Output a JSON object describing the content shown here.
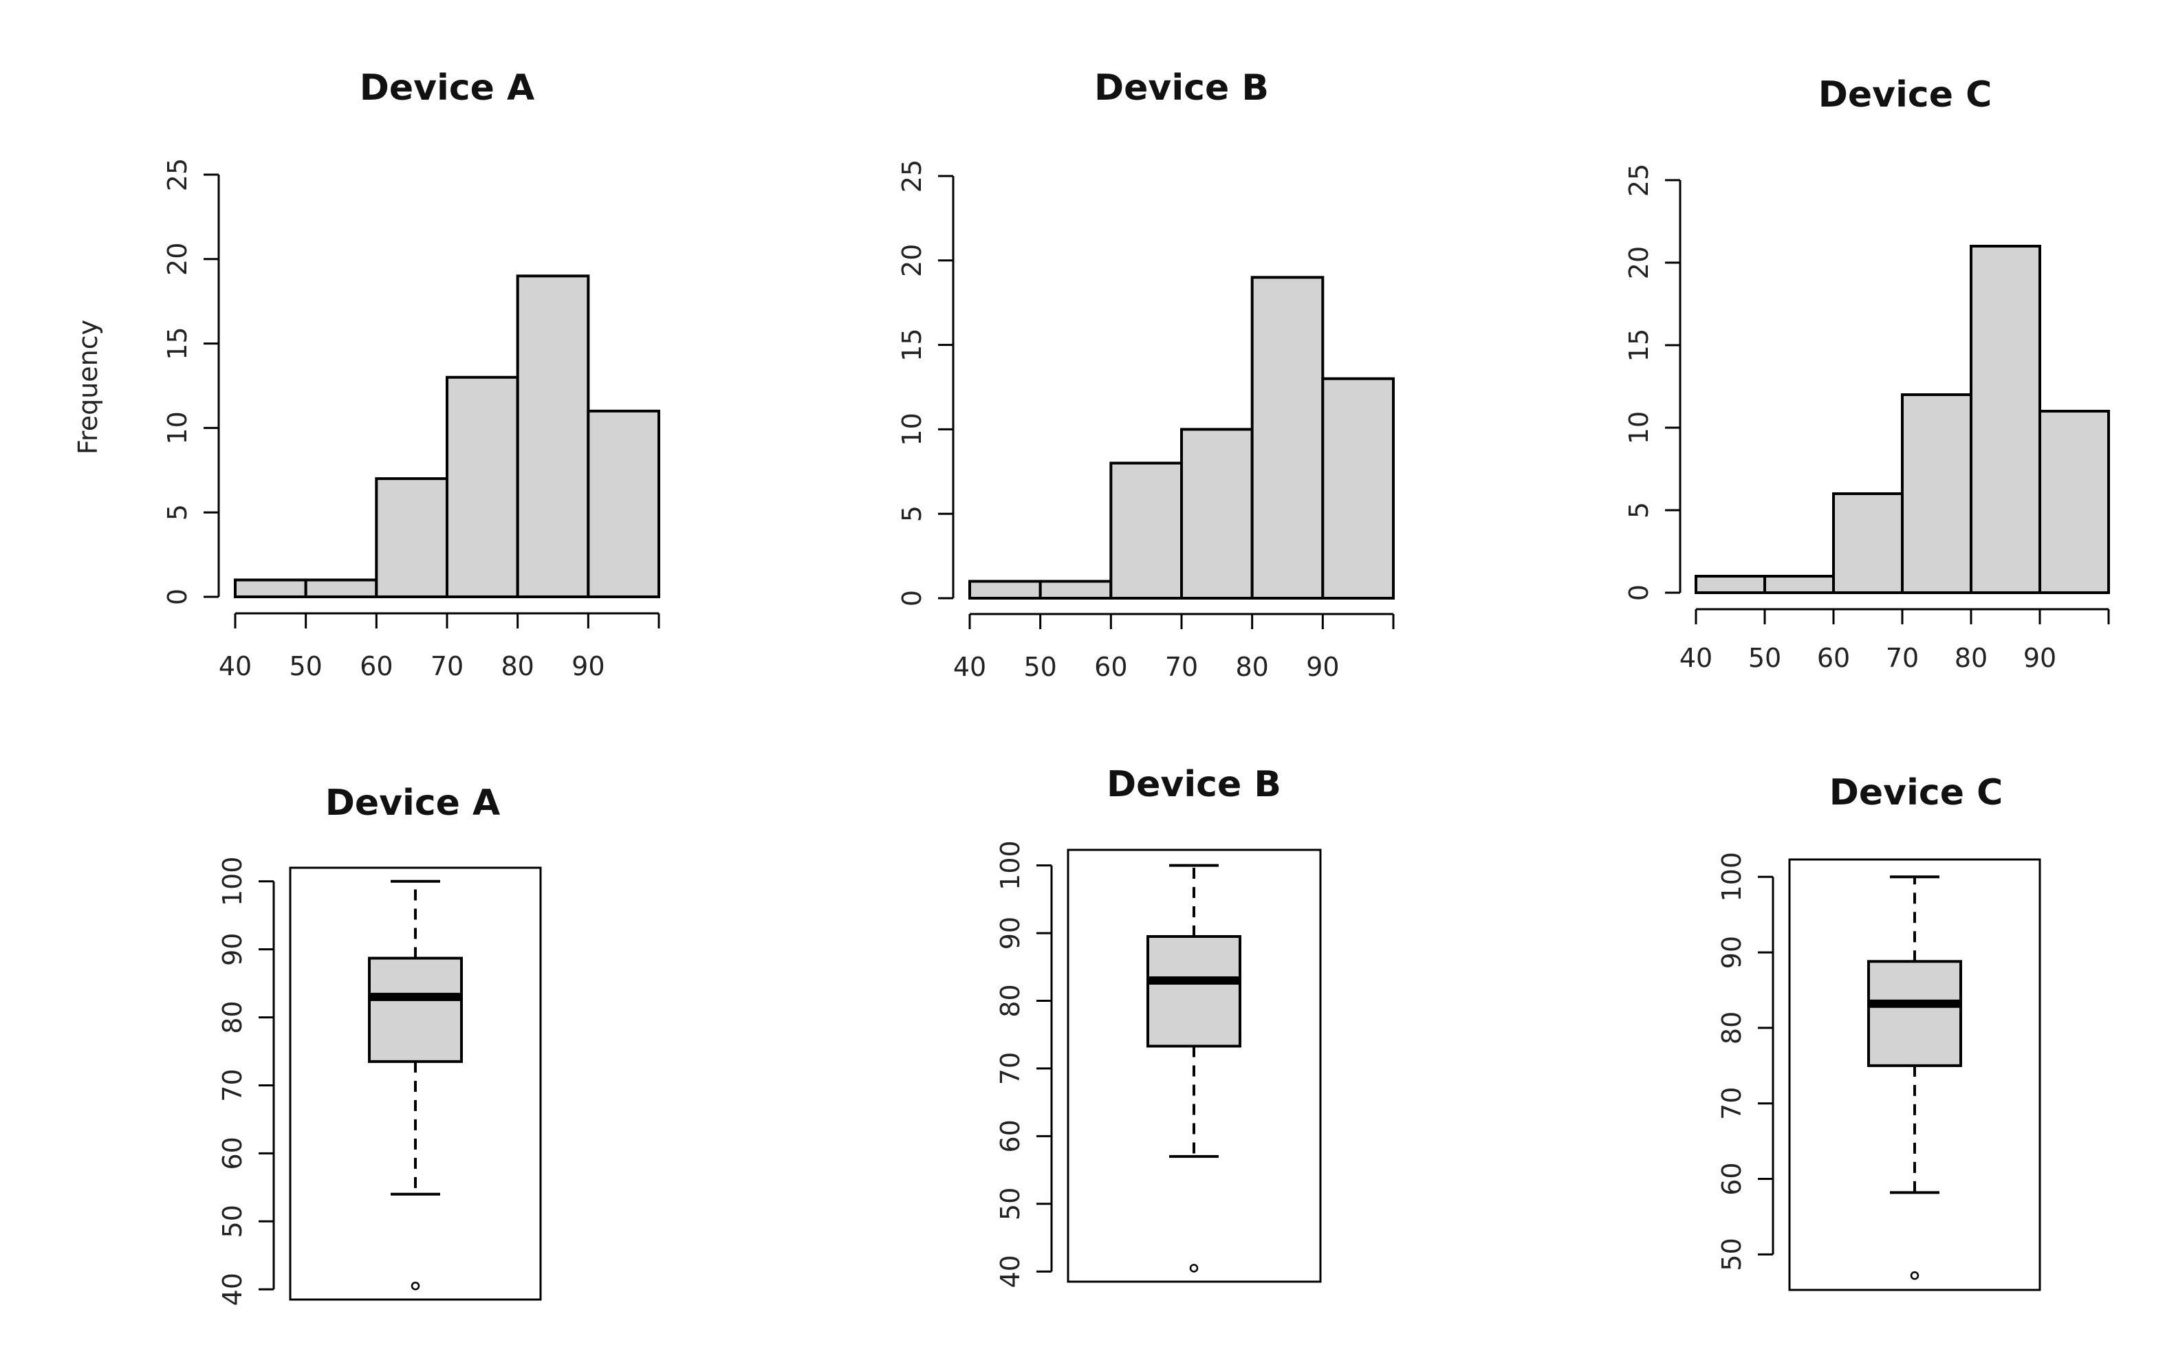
{
  "colors": {
    "fill": "#d3d3d3",
    "stroke": "#000000",
    "background": "#ffffff"
  },
  "chart_data": [
    {
      "type": "histogram",
      "title": "Device A",
      "ylabel": "Frequency",
      "xlabel": "",
      "bin_edges": [
        40,
        50,
        60,
        70,
        80,
        90,
        100
      ],
      "values": [
        1,
        1,
        7,
        13,
        19,
        11
      ],
      "x_ticks": [
        40,
        50,
        60,
        70,
        80,
        90
      ],
      "x_axis_range": [
        40,
        100
      ],
      "y_ticks": [
        0,
        5,
        10,
        15,
        20,
        25
      ],
      "ylim": [
        0,
        25
      ]
    },
    {
      "type": "histogram",
      "title": "Device B",
      "ylabel": "",
      "xlabel": "",
      "bin_edges": [
        40,
        50,
        60,
        70,
        80,
        90,
        100
      ],
      "values": [
        1,
        1,
        8,
        10,
        19,
        13
      ],
      "x_ticks": [
        40,
        50,
        60,
        70,
        80,
        90
      ],
      "x_axis_range": [
        40,
        100
      ],
      "y_ticks": [
        0,
        5,
        10,
        15,
        20,
        25
      ],
      "ylim": [
        0,
        25
      ]
    },
    {
      "type": "histogram",
      "title": "Device C",
      "ylabel": "",
      "xlabel": "",
      "bin_edges": [
        40,
        50,
        60,
        70,
        80,
        90,
        100
      ],
      "values": [
        1,
        1,
        6,
        12,
        21,
        11
      ],
      "x_ticks": [
        40,
        50,
        60,
        70,
        80,
        90
      ],
      "x_axis_range": [
        40,
        100
      ],
      "y_ticks": [
        0,
        5,
        10,
        15,
        20,
        25
      ],
      "ylim": [
        0,
        25
      ]
    },
    {
      "type": "boxplot",
      "title": "Device A",
      "y_ticks": [
        40,
        50,
        60,
        70,
        80,
        90,
        100
      ],
      "ylim": [
        38.5,
        102
      ],
      "whisker_low": 54,
      "q1": 73.5,
      "median": 83,
      "q3": 88.7,
      "whisker_high": 100,
      "outliers": [
        40.5
      ]
    },
    {
      "type": "boxplot",
      "title": "Device B",
      "y_ticks": [
        40,
        50,
        60,
        70,
        80,
        90,
        100
      ],
      "ylim": [
        38.5,
        102.3
      ],
      "whisker_low": 57,
      "q1": 73.3,
      "median": 83,
      "q3": 89.5,
      "whisker_high": 100,
      "outliers": [
        40.5
      ]
    },
    {
      "type": "boxplot",
      "title": "Device C",
      "y_ticks": [
        50,
        60,
        70,
        80,
        90,
        100
      ],
      "ylim": [
        45.3,
        102.3
      ],
      "whisker_low": 58.2,
      "q1": 75,
      "median": 83.2,
      "q3": 88.8,
      "whisker_high": 100,
      "outliers": [
        47.2
      ]
    }
  ]
}
